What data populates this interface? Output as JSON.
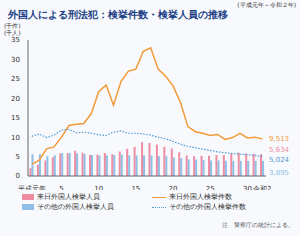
{
  "chart_data": {
    "type": "bar",
    "title": "外国人による刑法犯：検挙件数・検挙人員の推移",
    "subtitle": "(平成元年～令和２年)",
    "y_label": [
      "(千件)",
      "(千人)"
    ],
    "note": "注　警察庁の統計による。",
    "categories": [
      "平成元年",
      null,
      null,
      null,
      "5",
      null,
      null,
      null,
      null,
      "10",
      null,
      null,
      null,
      null,
      "15",
      null,
      null,
      null,
      null,
      "20",
      null,
      null,
      null,
      null,
      "25",
      null,
      null,
      null,
      null,
      "30",
      null,
      "令和2"
    ],
    "ylim": [
      0,
      35
    ],
    "yticks": [
      0,
      5,
      10,
      15,
      20,
      25,
      30,
      35
    ],
    "grid": false,
    "legend": "bottom",
    "series": [
      {
        "name": "来日外国人検挙人員",
        "type": "bar",
        "color": "#f08ca2",
        "values": [
          2.0,
          2.9,
          4.0,
          4.8,
          5.8,
          5.9,
          6.5,
          6.0,
          5.4,
          5.5,
          5.9,
          5.6,
          6.3,
          7.0,
          7.5,
          8.7,
          8.5,
          8.1,
          7.5,
          7.1,
          6.1,
          5.3,
          5.1,
          5.2,
          5.2,
          5.4,
          5.4,
          5.8,
          6.0,
          5.8,
          5.7,
          5.634
        ],
        "value_labels": [
          null,
          null,
          null,
          null,
          null,
          null,
          null,
          null,
          null,
          null,
          null,
          null,
          null,
          null,
          null,
          null,
          null,
          null,
          null,
          null,
          null,
          null,
          null,
          null,
          null,
          null,
          null,
          null,
          null,
          null,
          null,
          "5,634"
        ]
      },
      {
        "name": "来日外国人検挙件数",
        "type": "line",
        "color": "#f29a3a",
        "line_style": "solid",
        "marker": "none",
        "values": [
          3.0,
          4.1,
          7.0,
          7.5,
          10.0,
          13.0,
          13.3,
          13.5,
          16.0,
          21.7,
          23.4,
          18.2,
          24.3,
          27.0,
          27.5,
          32.1,
          33.0,
          27.5,
          25.7,
          23.2,
          18.9,
          12.7,
          11.4,
          11.0,
          10.4,
          10.7,
          9.4,
          9.9,
          11.0,
          9.8,
          10.0,
          9.513
        ],
        "value_labels": [
          null,
          null,
          null,
          null,
          null,
          null,
          null,
          null,
          null,
          null,
          null,
          null,
          null,
          null,
          null,
          null,
          null,
          null,
          null,
          null,
          null,
          null,
          null,
          null,
          null,
          null,
          null,
          null,
          null,
          null,
          null,
          "9,513"
        ]
      },
      {
        "name": "その他の外国人検挙人員",
        "type": "bar",
        "color": "#8fbfe6",
        "values": [
          5.6,
          5.6,
          5.1,
          5.3,
          5.9,
          5.9,
          5.8,
          5.7,
          5.4,
          5.3,
          5.3,
          5.4,
          5.5,
          5.3,
          5.3,
          5.3,
          5.3,
          5.1,
          5.1,
          4.8,
          4.6,
          4.3,
          4.2,
          4.1,
          4.0,
          4.0,
          3.9,
          3.9,
          3.9,
          3.9,
          3.9,
          3.895
        ],
        "value_labels": [
          null,
          null,
          null,
          null,
          null,
          null,
          null,
          null,
          null,
          null,
          null,
          null,
          null,
          null,
          null,
          null,
          null,
          null,
          null,
          null,
          null,
          null,
          null,
          null,
          null,
          null,
          null,
          null,
          null,
          null,
          null,
          "3,895"
        ]
      },
      {
        "name": "その他の外国人検挙件数",
        "type": "line",
        "color": "#4f9bd6",
        "line_style": "dotted",
        "marker": "none",
        "values": [
          10.2,
          10.8,
          9.9,
          10.5,
          11.8,
          12.0,
          11.1,
          11.3,
          11.0,
          10.6,
          10.4,
          11.3,
          11.6,
          11.0,
          11.0,
          10.8,
          10.5,
          10.0,
          9.6,
          8.9,
          8.2,
          7.6,
          7.3,
          6.9,
          6.6,
          6.2,
          6.0,
          5.8,
          5.6,
          5.5,
          5.3,
          5.024
        ],
        "value_labels": [
          null,
          null,
          null,
          null,
          null,
          null,
          null,
          null,
          null,
          null,
          null,
          null,
          null,
          null,
          null,
          null,
          null,
          null,
          null,
          null,
          null,
          null,
          null,
          null,
          null,
          null,
          null,
          null,
          null,
          null,
          null,
          "5,024"
        ]
      }
    ]
  }
}
